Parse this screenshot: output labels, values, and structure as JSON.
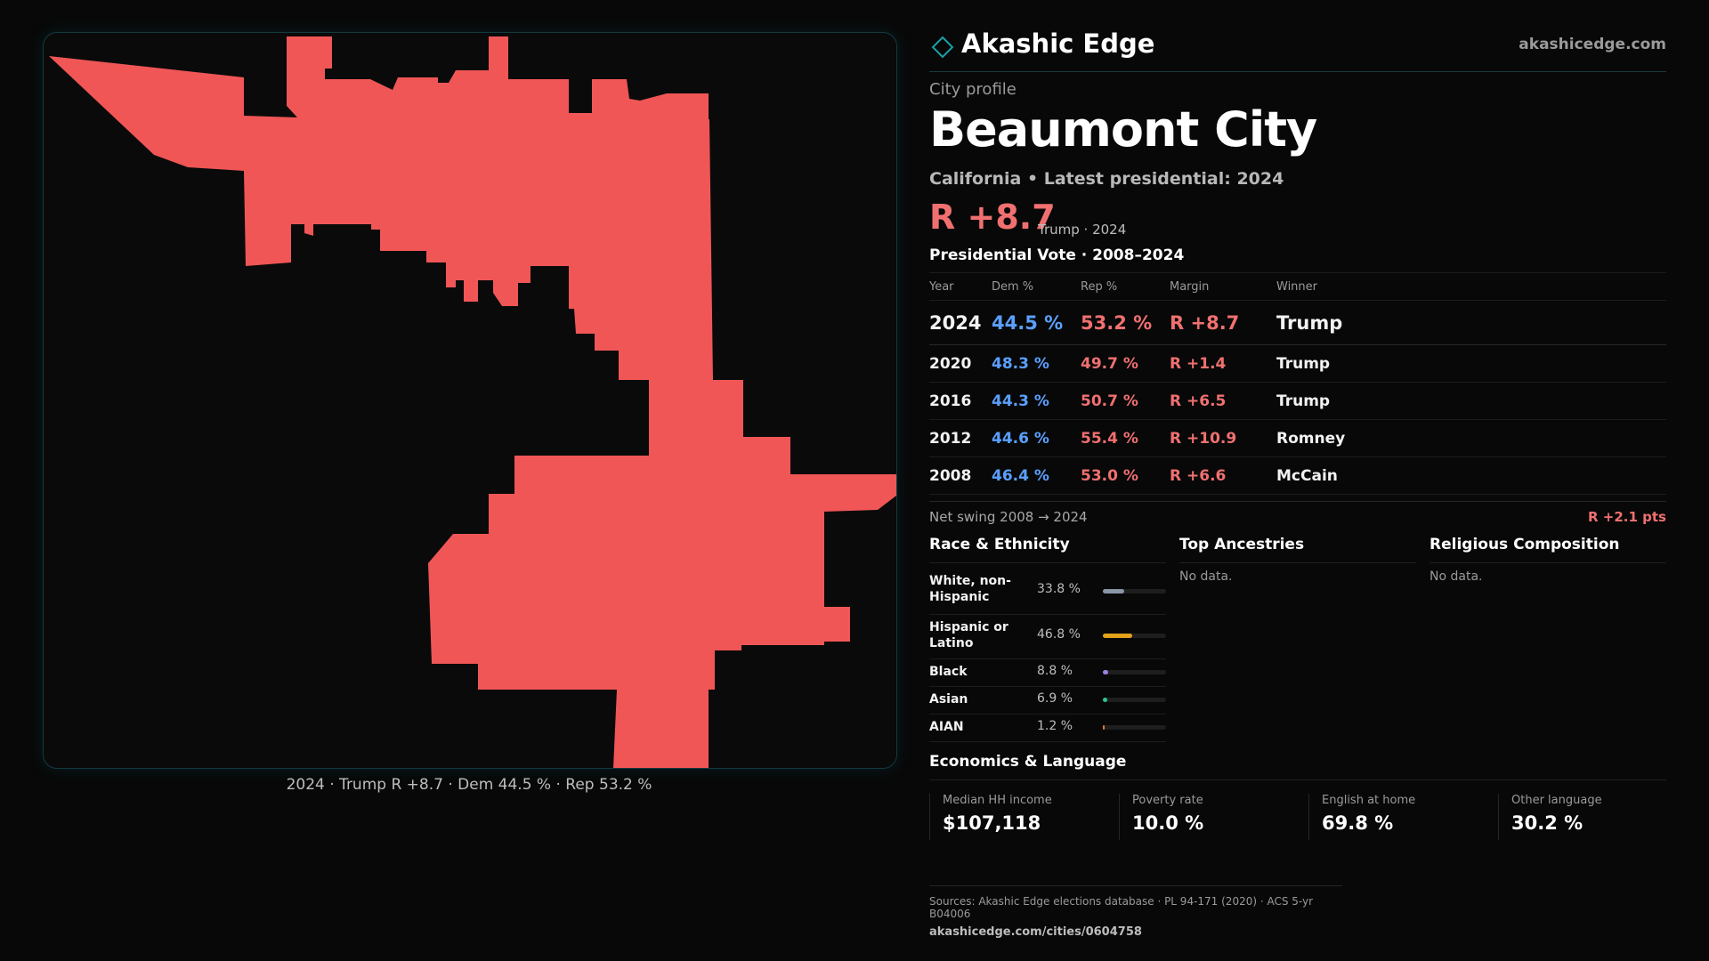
{
  "map": {
    "caption": "2024 · Trump R +8.7 · Dem 44.5 % · Rep 53.2 %",
    "fill_color": "#f05656",
    "border_color": "#123a3f"
  },
  "header": {
    "brand": "Akashic Edge",
    "logo_icon": "diamond-outline-icon",
    "site": "akashicedge.com"
  },
  "profile": {
    "kicker": "City profile",
    "name": "Beaumont City",
    "subtitle": "California • Latest presidential: 2024",
    "margin": "R +8.7",
    "margin_note": "Trump · 2024"
  },
  "votes": {
    "heading": "Presidential Vote · 2008–2024",
    "columns": [
      "Year",
      "Dem %",
      "Rep %",
      "Margin",
      "Winner"
    ],
    "rows": [
      {
        "year": "2024",
        "dem": "44.5 %",
        "rep": "53.2 %",
        "margin": "R +8.7",
        "winner": "Trump"
      },
      {
        "year": "2020",
        "dem": "48.3 %",
        "rep": "49.7 %",
        "margin": "R +1.4",
        "winner": "Trump"
      },
      {
        "year": "2016",
        "dem": "44.3 %",
        "rep": "50.7 %",
        "margin": "R +6.5",
        "winner": "Trump"
      },
      {
        "year": "2012",
        "dem": "44.6 %",
        "rep": "55.4 %",
        "margin": "R +10.9",
        "winner": "Romney"
      },
      {
        "year": "2008",
        "dem": "46.4 %",
        "rep": "53.0 %",
        "margin": "R +6.6",
        "winner": "McCain"
      }
    ],
    "swing_label": "Net swing 2008 → 2024",
    "swing_value": "R +2.1 pts"
  },
  "race": {
    "heading": "Race & Ethnicity",
    "rows": [
      {
        "label": "White, non-Hispanic",
        "pct": "33.8 %",
        "value": 33.8,
        "color": "#8a96a6"
      },
      {
        "label": "Hispanic or Latino",
        "pct": "46.8 %",
        "value": 46.8,
        "color": "#e3a21a"
      },
      {
        "label": "Black",
        "pct": "8.8 %",
        "value": 8.8,
        "color": "#9b7fe0"
      },
      {
        "label": "Asian",
        "pct": "6.9 %",
        "value": 6.9,
        "color": "#2ec48a"
      },
      {
        "label": "AIAN",
        "pct": "1.2 %",
        "value": 1.2,
        "color": "#e07a3a"
      }
    ]
  },
  "ancestries": {
    "heading": "Top Ancestries",
    "empty": "No data."
  },
  "religion": {
    "heading": "Religious Composition",
    "empty": "No data."
  },
  "economics": {
    "heading": "Economics & Language",
    "items": [
      {
        "label": "Median HH income",
        "value": "$107,118"
      },
      {
        "label": "Poverty rate",
        "value": "10.0 %"
      },
      {
        "label": "English at home",
        "value": "69.8 %"
      },
      {
        "label": "Other language",
        "value": "30.2 %"
      }
    ]
  },
  "sources": {
    "line1": "Sources: Akashic Edge elections database · PL 94-171 (2020) · ACS 5-yr B04006",
    "line2": "akashicedge.com/cities/0604758"
  }
}
